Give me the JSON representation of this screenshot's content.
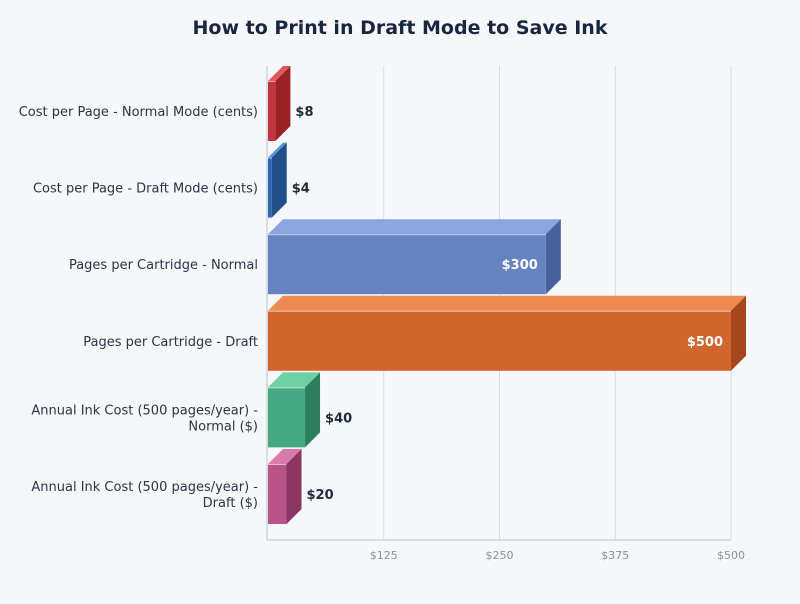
{
  "chart_data": {
    "type": "bar",
    "orientation": "horizontal",
    "style": "3d",
    "title": "How to Print in Draft Mode to Save Ink",
    "categories": [
      [
        "Cost per Page - Normal Mode (cents)"
      ],
      [
        "Cost per Page - Draft Mode (cents)"
      ],
      [
        "Pages per Cartridge - Normal"
      ],
      [
        "Pages per Cartridge - Draft"
      ],
      [
        "Annual Ink Cost (500 pages/year) -",
        "Normal ($)"
      ],
      [
        "Annual Ink Cost (500 pages/year) -",
        "Draft ($)"
      ]
    ],
    "values": [
      8,
      4,
      300,
      500,
      40,
      20
    ],
    "data_labels": [
      "$8",
      "$4",
      "$300",
      "$500",
      "$40",
      "$20"
    ],
    "colors": [
      {
        "front": "#c1363f",
        "top": "#e0585f",
        "side": "#9a2226"
      },
      {
        "front": "#2b68ad",
        "top": "#5a95d3",
        "side": "#1f5089"
      },
      {
        "front": "#6682c0",
        "top": "#8aa5df",
        "side": "#48609c"
      },
      {
        "front": "#d2652c",
        "top": "#ee8a50",
        "side": "#a5471b"
      },
      {
        "front": "#45a882",
        "top": "#6fd0a6",
        "side": "#2d7e5e"
      },
      {
        "front": "#b85488",
        "top": "#d87ba8",
        "side": "#8c3462"
      }
    ],
    "xlim": [
      0,
      500
    ],
    "xticks": [
      125,
      250,
      375,
      500
    ],
    "xtick_labels": [
      "$125",
      "$250",
      "$375",
      "$500"
    ],
    "grid": true
  }
}
